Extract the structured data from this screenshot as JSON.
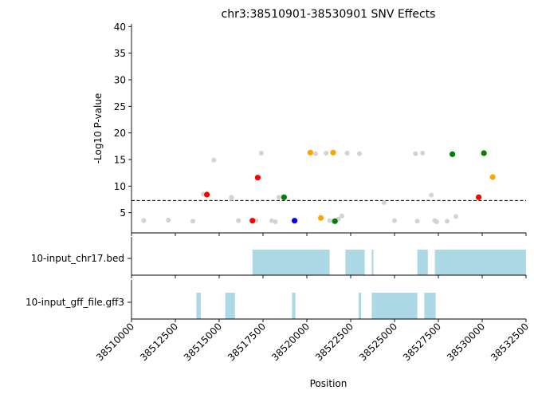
{
  "chart_data": {
    "title": "chr3:38510901-38530901 SNV Effects",
    "type": "scatter",
    "ylabel": "-Log10 P-value",
    "xlabel": "Position",
    "xlim": [
      38510000,
      38532500
    ],
    "ylim": [
      1.2,
      40.5
    ],
    "yticks": [
      5,
      10,
      15,
      20,
      25,
      30,
      35,
      40
    ],
    "xticks": [
      38510000,
      38512500,
      38515000,
      38517500,
      38520000,
      38522500,
      38525000,
      38527500,
      38530000,
      38532500
    ],
    "threshold": 7.3,
    "colors": {
      "gray": "#d3d3d3",
      "red": "#ff0000",
      "green": "#008000",
      "orange": "#ffa500",
      "blue": "#0000ff",
      "track": "#add8e6",
      "threshold_line": "#000000"
    },
    "points": [
      {
        "x": 38510700,
        "y": 3.5,
        "c": "gray"
      },
      {
        "x": 38512100,
        "y": 3.6,
        "c": "gray"
      },
      {
        "x": 38513500,
        "y": 3.4,
        "c": "gray"
      },
      {
        "x": 38514100,
        "y": 8.5,
        "c": "gray"
      },
      {
        "x": 38514300,
        "y": 8.4,
        "c": "red"
      },
      {
        "x": 38514700,
        "y": 14.9,
        "c": "gray"
      },
      {
        "x": 38515700,
        "y": 7.9,
        "c": "gray"
      },
      {
        "x": 38515700,
        "y": 7.7,
        "c": "gray"
      },
      {
        "x": 38516100,
        "y": 3.5,
        "c": "gray"
      },
      {
        "x": 38516900,
        "y": 3.5,
        "c": "red"
      },
      {
        "x": 38517100,
        "y": 3.5,
        "c": "gray"
      },
      {
        "x": 38517200,
        "y": 11.6,
        "c": "red"
      },
      {
        "x": 38517400,
        "y": 16.2,
        "c": "gray"
      },
      {
        "x": 38518000,
        "y": 3.5,
        "c": "gray"
      },
      {
        "x": 38518200,
        "y": 3.3,
        "c": "gray"
      },
      {
        "x": 38518400,
        "y": 7.9,
        "c": "gray"
      },
      {
        "x": 38518700,
        "y": 7.9,
        "c": "green"
      },
      {
        "x": 38519300,
        "y": 3.5,
        "c": "blue"
      },
      {
        "x": 38520200,
        "y": 16.3,
        "c": "orange"
      },
      {
        "x": 38520500,
        "y": 16.1,
        "c": "gray"
      },
      {
        "x": 38520800,
        "y": 4.0,
        "c": "orange"
      },
      {
        "x": 38521100,
        "y": 16.2,
        "c": "gray"
      },
      {
        "x": 38521300,
        "y": 3.5,
        "c": "gray"
      },
      {
        "x": 38521500,
        "y": 16.3,
        "c": "orange"
      },
      {
        "x": 38521600,
        "y": 3.4,
        "c": "green"
      },
      {
        "x": 38521800,
        "y": 3.8,
        "c": "gray"
      },
      {
        "x": 38522000,
        "y": 4.4,
        "c": "gray"
      },
      {
        "x": 38522300,
        "y": 16.2,
        "c": "gray"
      },
      {
        "x": 38523000,
        "y": 16.1,
        "c": "gray"
      },
      {
        "x": 38524400,
        "y": 6.9,
        "c": "gray"
      },
      {
        "x": 38525000,
        "y": 3.5,
        "c": "gray"
      },
      {
        "x": 38526200,
        "y": 16.1,
        "c": "gray"
      },
      {
        "x": 38526300,
        "y": 3.4,
        "c": "gray"
      },
      {
        "x": 38526600,
        "y": 16.2,
        "c": "gray"
      },
      {
        "x": 38527100,
        "y": 8.3,
        "c": "gray"
      },
      {
        "x": 38527300,
        "y": 3.5,
        "c": "gray"
      },
      {
        "x": 38527400,
        "y": 3.3,
        "c": "gray"
      },
      {
        "x": 38528000,
        "y": 3.4,
        "c": "gray"
      },
      {
        "x": 38528300,
        "y": 16.0,
        "c": "green"
      },
      {
        "x": 38528500,
        "y": 4.3,
        "c": "gray"
      },
      {
        "x": 38529800,
        "y": 7.9,
        "c": "red"
      },
      {
        "x": 38530100,
        "y": 16.2,
        "c": "green"
      },
      {
        "x": 38530600,
        "y": 11.7,
        "c": "orange"
      }
    ],
    "tracks": [
      {
        "label": "10-input_chr17.bed",
        "intervals": [
          [
            38516900,
            38521300
          ],
          [
            38522200,
            38523300
          ],
          [
            38523700,
            38523800
          ],
          [
            38526300,
            38526900
          ],
          [
            38527300,
            38532500
          ]
        ]
      },
      {
        "label": "10-input_gff_file.gff3",
        "intervals": [
          [
            38513700,
            38513950
          ],
          [
            38515350,
            38515900
          ],
          [
            38519150,
            38519350
          ],
          [
            38522950,
            38523100
          ],
          [
            38523700,
            38526300
          ],
          [
            38526700,
            38527350
          ]
        ]
      }
    ]
  }
}
